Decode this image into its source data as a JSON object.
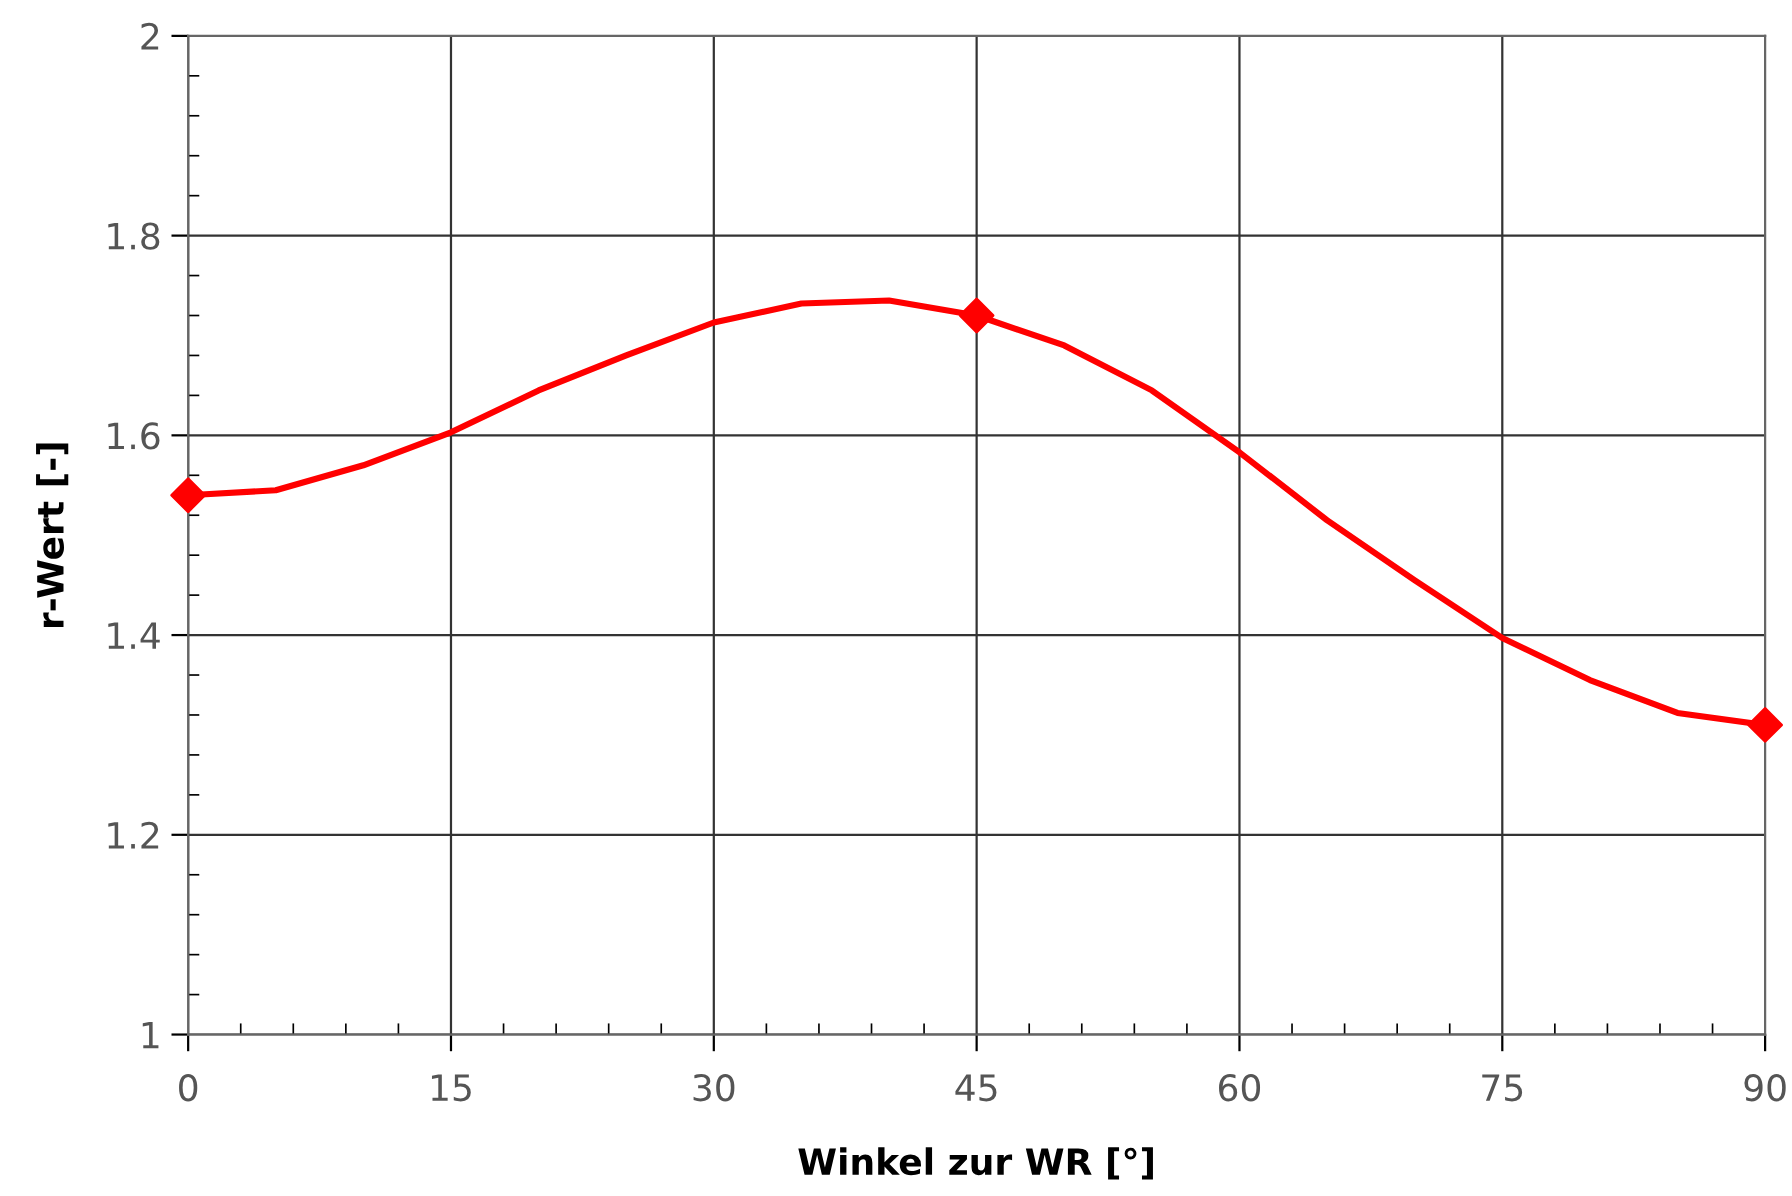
{
  "chart_data": {
    "type": "line",
    "xlabel": "Winkel zur WR [°]",
    "ylabel": "r-Wert [-]",
    "xlim": [
      0,
      90
    ],
    "ylim": [
      1,
      2
    ],
    "xticks": [
      0,
      {
        "value": 3,
        "label": null
      },
      {
        "value": 6,
        "label": null
      },
      {
        "value": 9,
        "label": null
      },
      {
        "value": 12,
        "label": null
      },
      15,
      {
        "value": 18,
        "label": null
      },
      {
        "value": 21,
        "label": null
      },
      {
        "value": 24,
        "label": null
      },
      {
        "value": 27,
        "label": null
      },
      30,
      {
        "value": 33,
        "label": null
      },
      {
        "value": 36,
        "label": null
      },
      {
        "value": 39,
        "label": null
      },
      {
        "value": 42,
        "label": null
      },
      45,
      {
        "value": 48,
        "label": null
      },
      {
        "value": 51,
        "label": null
      },
      {
        "value": 54,
        "label": null
      },
      {
        "value": 57,
        "label": null
      },
      60,
      {
        "value": 63,
        "label": null
      },
      {
        "value": 66,
        "label": null
      },
      {
        "value": 69,
        "label": null
      },
      {
        "value": 72,
        "label": null
      },
      75,
      {
        "value": 78,
        "label": null
      },
      {
        "value": 81,
        "label": null
      },
      {
        "value": 84,
        "label": null
      },
      {
        "value": 87,
        "label": null
      },
      90
    ],
    "yticks": [
      1,
      {
        "value": 1.04,
        "label": null
      },
      {
        "value": 1.08,
        "label": null
      },
      {
        "value": 1.12,
        "label": null
      },
      {
        "value": 1.16,
        "label": null
      },
      1.2,
      {
        "value": 1.24,
        "label": null
      },
      {
        "value": 1.28,
        "label": null
      },
      {
        "value": 1.32,
        "label": null
      },
      {
        "value": 1.36,
        "label": null
      },
      1.4,
      {
        "value": 1.44,
        "label": null
      },
      {
        "value": 1.48,
        "label": null
      },
      {
        "value": 1.52,
        "label": null
      },
      {
        "value": 1.56,
        "label": null
      },
      1.6,
      {
        "value": 1.64,
        "label": null
      },
      {
        "value": 1.68,
        "label": null
      },
      {
        "value": 1.72,
        "label": null
      },
      {
        "value": 1.76,
        "label": null
      },
      1.8,
      {
        "value": 1.84,
        "label": null
      },
      {
        "value": 1.88,
        "label": null
      },
      {
        "value": 1.92,
        "label": null
      },
      {
        "value": 1.96,
        "label": null
      },
      2
    ],
    "grid": true,
    "legend": false,
    "series": [
      {
        "marker": "none",
        "color": "#ff0000",
        "x": [
          0,
          5,
          10,
          15,
          20,
          25,
          30,
          35,
          40,
          45,
          50,
          55,
          60,
          65,
          70,
          75,
          80,
          85,
          90
        ],
        "values": [
          1.54,
          1.545,
          1.57,
          1.603,
          1.645,
          1.68,
          1.713,
          1.732,
          1.735,
          1.72,
          1.69,
          1.645,
          1.583,
          1.515,
          1.455,
          1.397,
          1.355,
          1.322,
          1.31
        ]
      },
      {
        "type": "scatter",
        "marker": "diamond",
        "color": "#ff0000",
        "x": [
          0,
          45,
          90
        ],
        "values": [
          1.54,
          1.72,
          1.31
        ]
      }
    ]
  }
}
